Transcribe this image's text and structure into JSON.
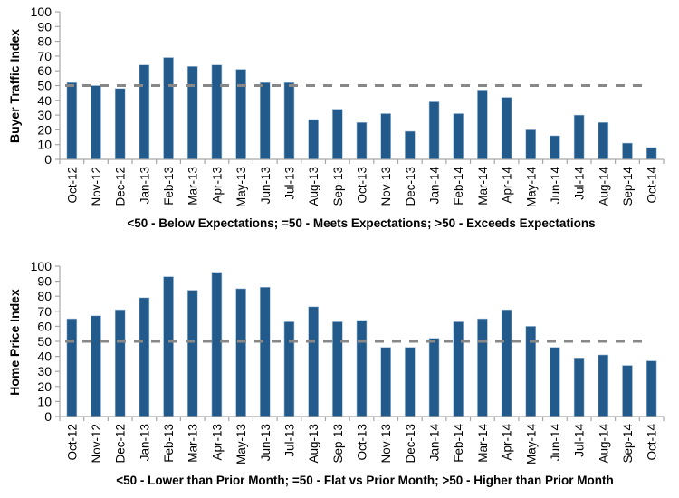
{
  "chart_data": [
    {
      "type": "bar",
      "title": "",
      "ylabel": "Buyer Traffic Index",
      "xlabel": "<50 - Below Expectations; =50 - Meets Expectations; >50 - Exceeds Expectations",
      "ylim": [
        0,
        100
      ],
      "yticks": [
        0,
        10,
        20,
        30,
        40,
        50,
        60,
        70,
        80,
        90,
        100
      ],
      "reference_line": {
        "value": 50,
        "style": "dashed",
        "color": "#888888"
      },
      "bar_color": "#235a8c",
      "grid": false,
      "categories": [
        "Oct-12",
        "Nov-12",
        "Dec-12",
        "Jan-13",
        "Feb-13",
        "Mar-13",
        "Apr-13",
        "May-13",
        "Jun-13",
        "Jul-13",
        "Aug-13",
        "Sep-13",
        "Oct-13",
        "Nov-13",
        "Dec-13",
        "Jan-14",
        "Feb-14",
        "Mar-14",
        "Apr-14",
        "May-14",
        "Jun-14",
        "Jul-14",
        "Aug-14",
        "Sep-14",
        "Oct-14"
      ],
      "values": [
        52,
        50,
        48,
        64,
        69,
        63,
        64,
        61,
        52,
        52,
        27,
        34,
        25,
        31,
        19,
        39,
        31,
        47,
        42,
        20,
        16,
        30,
        25,
        11,
        8
      ]
    },
    {
      "type": "bar",
      "title": "",
      "ylabel": "Home Price Index",
      "xlabel": "<50 - Lower than Prior Month; =50 - Flat vs Prior Month; >50 - Higher than Prior Month",
      "ylim": [
        0,
        100
      ],
      "yticks": [
        0,
        10,
        20,
        30,
        40,
        50,
        60,
        70,
        80,
        90,
        100
      ],
      "reference_line": {
        "value": 50,
        "style": "dashed",
        "color": "#888888"
      },
      "bar_color": "#235a8c",
      "grid": false,
      "categories": [
        "Oct-12",
        "Nov-12",
        "Dec-12",
        "Jan-13",
        "Feb-13",
        "Mar-13",
        "Apr-13",
        "May-13",
        "Jun-13",
        "Jul-13",
        "Aug-13",
        "Sep-13",
        "Oct-13",
        "Nov-13",
        "Dec-13",
        "Jan-14",
        "Feb-14",
        "Mar-14",
        "Apr-14",
        "May-14",
        "Jun-14",
        "Jul-14",
        "Aug-14",
        "Sep-14",
        "Oct-14"
      ],
      "values": [
        65,
        67,
        71,
        79,
        93,
        84,
        96,
        85,
        86,
        63,
        73,
        63,
        64,
        46,
        46,
        52,
        63,
        65,
        71,
        60,
        46,
        39,
        41,
        34,
        37
      ]
    }
  ]
}
